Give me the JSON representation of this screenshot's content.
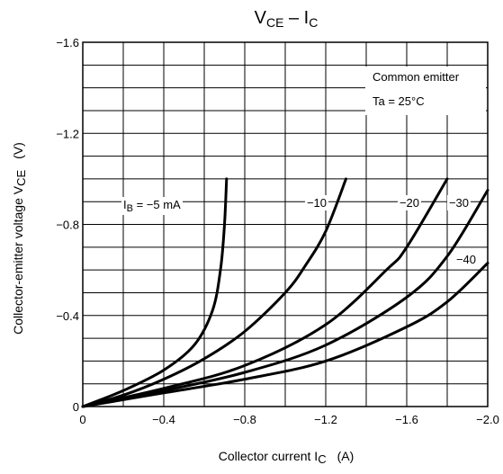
{
  "chart_data": {
    "type": "line",
    "title": {
      "main_1": "V",
      "sub_1": "CE",
      "mid": " – I",
      "sub_2": "C"
    },
    "xlabel": {
      "text": "Collector current  I",
      "sub": "C",
      "unit": "(A)"
    },
    "ylabel": {
      "text": "Collector-emitter voltage  V",
      "sub": "CE",
      "unit": "(V)"
    },
    "xlim": [
      0,
      -2.0
    ],
    "ylim": [
      0,
      -1.6
    ],
    "x_ticks": [
      "0",
      "−0.4",
      "−0.8",
      "−1.2",
      "−1.6",
      "−2.0"
    ],
    "x_tick_values": [
      0,
      -0.4,
      -0.8,
      -1.2,
      -1.6,
      -2.0
    ],
    "y_ticks": [
      "0",
      "−0.4",
      "−0.8",
      "−1.2",
      "−1.6"
    ],
    "y_tick_values": [
      0,
      -0.4,
      -0.8,
      -1.2,
      -1.6
    ],
    "grid": true,
    "annotation": {
      "line1": "Common emitter",
      "line2": "Ta = 25°C"
    },
    "series": [
      {
        "label_prefix": "I",
        "label_sub": "B",
        "label_text": " = −5 mA",
        "points": [
          [
            0,
            0
          ],
          [
            -0.2,
            -0.07
          ],
          [
            -0.4,
            -0.16
          ],
          [
            -0.55,
            -0.27
          ],
          [
            -0.64,
            -0.42
          ],
          [
            -0.68,
            -0.6
          ],
          [
            -0.7,
            -0.8
          ],
          [
            -0.71,
            -1.0
          ]
        ]
      },
      {
        "label_text": "−10",
        "points": [
          [
            0,
            0
          ],
          [
            -0.2,
            -0.05
          ],
          [
            -0.4,
            -0.12
          ],
          [
            -0.6,
            -0.21
          ],
          [
            -0.8,
            -0.33
          ],
          [
            -1.0,
            -0.5
          ],
          [
            -1.1,
            -0.62
          ],
          [
            -1.2,
            -0.77
          ],
          [
            -1.3,
            -1.0
          ]
        ]
      },
      {
        "label_text": "−20",
        "points": [
          [
            0,
            0
          ],
          [
            -0.4,
            -0.08
          ],
          [
            -0.8,
            -0.18
          ],
          [
            -1.2,
            -0.36
          ],
          [
            -1.5,
            -0.6
          ],
          [
            -1.6,
            -0.7
          ],
          [
            -1.8,
            -1.0
          ]
        ]
      },
      {
        "label_text": "−30",
        "points": [
          [
            0,
            0
          ],
          [
            -0.4,
            -0.07
          ],
          [
            -0.8,
            -0.15
          ],
          [
            -1.2,
            -0.27
          ],
          [
            -1.6,
            -0.48
          ],
          [
            -1.8,
            -0.66
          ],
          [
            -2.0,
            -0.95
          ]
        ]
      },
      {
        "label_text": "−40",
        "points": [
          [
            0,
            0
          ],
          [
            -0.4,
            -0.06
          ],
          [
            -0.8,
            -0.12
          ],
          [
            -1.2,
            -0.2
          ],
          [
            -1.6,
            -0.35
          ],
          [
            -1.8,
            -0.46
          ],
          [
            -2.0,
            -0.63
          ]
        ]
      }
    ]
  }
}
